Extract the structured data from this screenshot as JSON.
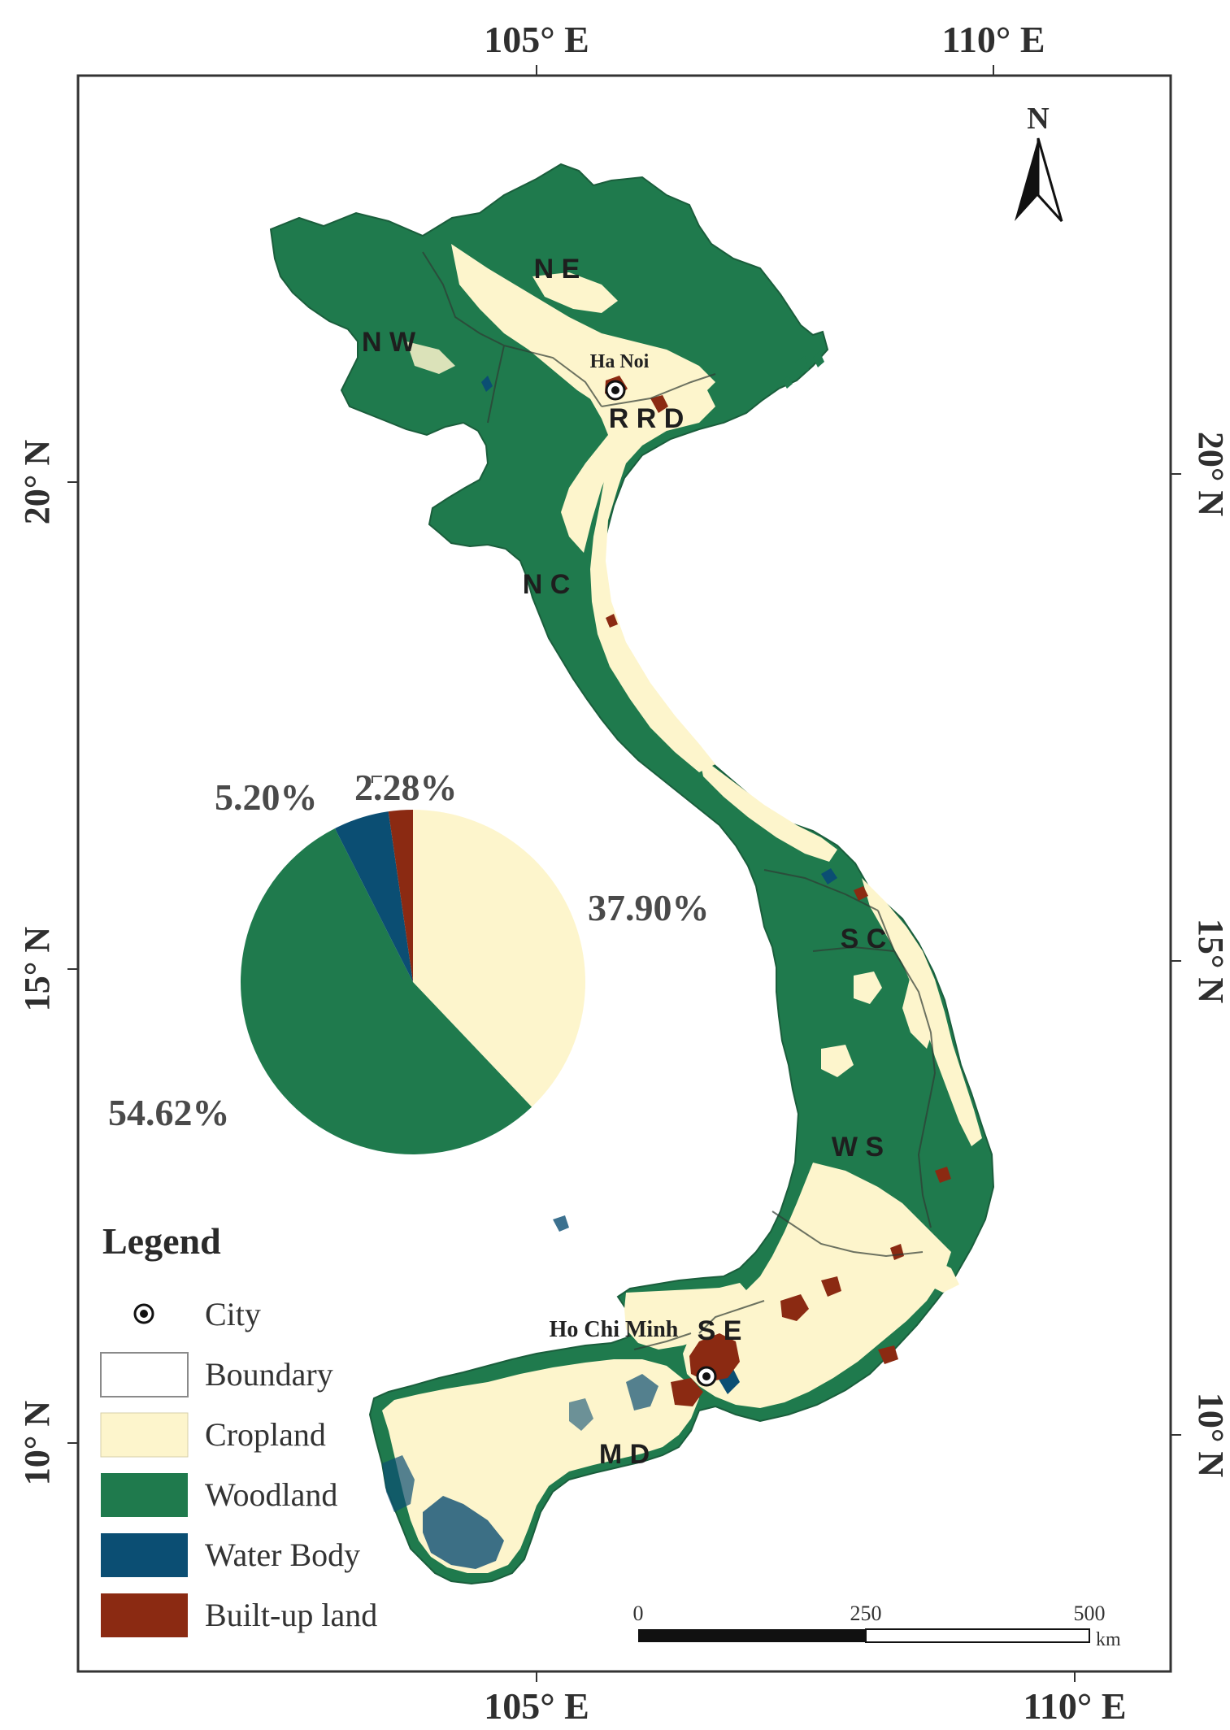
{
  "map": {
    "north_label": "N",
    "top_ticks": [
      "105° E",
      "110° E"
    ],
    "bottom_ticks": [
      "105° E",
      "110° E"
    ],
    "left_ticks": [
      "20° N",
      "15° N",
      "10° N"
    ],
    "right_ticks": [
      "20° N",
      "15° N",
      "10° N"
    ],
    "regions": [
      "N E",
      "N W",
      "R R D",
      "N C",
      "S C",
      "W S",
      "S E",
      "M D"
    ],
    "cities": [
      "Ha Noi",
      "Ho Chi Minh"
    ],
    "colors": {
      "cropland": "#fdf5cc",
      "woodland": "#1f7a4d",
      "water_body": "#0b4e73",
      "built_up": "#8b2a12",
      "boundary": "#ffffff"
    }
  },
  "pie": {
    "slices": [
      {
        "label": "37.90%",
        "value": 37.9,
        "class": "Cropland",
        "color": "#fdf5cc"
      },
      {
        "label": "54.62%",
        "value": 54.62,
        "class": "Woodland",
        "color": "#1f7a4d"
      },
      {
        "label": "5.20%",
        "value": 5.2,
        "class": "Water Body",
        "color": "#0b4e73"
      },
      {
        "label": "2.28%",
        "value": 2.28,
        "class": "Built-up land",
        "color": "#8b2a12"
      }
    ]
  },
  "legend": {
    "title": "Legend",
    "items": [
      {
        "label": "City",
        "icon": "city-point-icon"
      },
      {
        "label": "Boundary",
        "color": "#ffffff"
      },
      {
        "label": "Cropland",
        "color": "#fdf5cc"
      },
      {
        "label": "Woodland",
        "color": "#1f7a4d"
      },
      {
        "label": "Water Body",
        "color": "#0b4e73"
      },
      {
        "label": "Built-up land",
        "color": "#8b2a12"
      }
    ]
  },
  "scale_bar": {
    "ticks": [
      "0",
      "250",
      "500"
    ],
    "unit": "km"
  }
}
